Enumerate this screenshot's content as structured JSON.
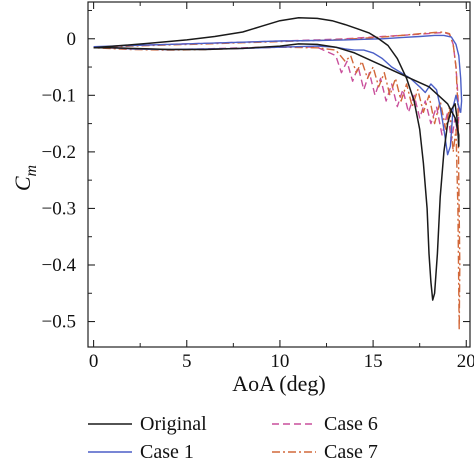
{
  "chart_data": {
    "type": "line",
    "title": "",
    "xlabel": "AoA (deg)",
    "ylabel_main": "C",
    "ylabel_sub": "m",
    "xlim": [
      -0.3,
      20.2
    ],
    "ylim": [
      -0.545,
      0.065
    ],
    "x_ticks": [
      0,
      5,
      10,
      15,
      20
    ],
    "x_tick_labels": [
      "0",
      "5",
      "10",
      "15",
      "20"
    ],
    "x_minor_ticks": [
      2.5,
      7.5,
      12.5,
      17.5
    ],
    "y_ticks": [
      0,
      -0.1,
      -0.2,
      -0.3,
      -0.4,
      -0.5
    ],
    "y_tick_labels": [
      "0",
      "−0.1",
      "−0.2",
      "−0.3",
      "−0.4",
      "−0.5"
    ],
    "y_minor_ticks": [
      0.05,
      -0.05,
      -0.15,
      -0.25,
      -0.35,
      -0.45
    ],
    "grid": false,
    "legend": {
      "placement": "bottom",
      "entries": [
        "Original",
        "Case 1",
        "Case 6",
        "Case 7"
      ]
    },
    "series": [
      {
        "name": "Original",
        "color": "#1a1a1a",
        "dash": "",
        "x": [
          0.0,
          1.5,
          3.0,
          5.0,
          6.5,
          8.0,
          9.0,
          10.0,
          11.0,
          12.0,
          12.8,
          13.5,
          14.2,
          14.8,
          15.3,
          15.8,
          16.3,
          16.8,
          17.2,
          17.5,
          17.7,
          17.9,
          18.0,
          18.1,
          18.2,
          18.3,
          18.45,
          18.6,
          18.8,
          19.0,
          19.2,
          19.4,
          19.5,
          19.6,
          19.6,
          19.4,
          19.0,
          18.5,
          18.0,
          17.0,
          16.0,
          15.0,
          14.0,
          13.0,
          12.0,
          11.0,
          10.0,
          9.0,
          8.0,
          7.0,
          6.0,
          5.0,
          4.0,
          3.0,
          2.0,
          1.0,
          0.0
        ],
        "y": [
          -0.016,
          -0.012,
          -0.008,
          -0.002,
          0.004,
          0.012,
          0.022,
          0.032,
          0.037,
          0.036,
          0.032,
          0.025,
          0.017,
          0.01,
          0.0,
          -0.012,
          -0.035,
          -0.07,
          -0.11,
          -0.16,
          -0.22,
          -0.3,
          -0.38,
          -0.43,
          -0.462,
          -0.45,
          -0.38,
          -0.28,
          -0.2,
          -0.15,
          -0.125,
          -0.115,
          -0.14,
          -0.19,
          -0.17,
          -0.14,
          -0.115,
          -0.1,
          -0.085,
          -0.07,
          -0.055,
          -0.04,
          -0.025,
          -0.015,
          -0.01,
          -0.009,
          -0.013,
          -0.015,
          -0.017,
          -0.018,
          -0.019,
          -0.019,
          -0.019,
          -0.018,
          -0.017,
          -0.016,
          -0.016
        ]
      },
      {
        "name": "Case 1",
        "color": "#4b5fc7",
        "dash": "",
        "x": [
          0.0,
          2.0,
          4.0,
          6.0,
          8.0,
          10.0,
          12.0,
          13.5,
          14.5,
          15.5,
          16.5,
          17.5,
          18.3,
          18.8,
          19.2,
          19.45,
          19.6,
          19.7,
          19.75,
          19.7,
          19.6,
          19.45,
          19.3,
          19.15,
          19.0,
          18.8,
          18.6,
          18.4,
          18.1,
          17.8,
          17.5,
          17.0,
          16.5,
          16.0,
          15.5,
          15.0,
          14.5,
          14.0,
          13.5,
          13.0,
          12.0,
          10.0,
          8.0,
          6.0,
          4.0,
          2.0,
          0.0
        ],
        "y": [
          -0.014,
          -0.012,
          -0.01,
          -0.008,
          -0.006,
          -0.004,
          -0.003,
          -0.002,
          -0.001,
          0.0,
          0.002,
          0.004,
          0.006,
          0.006,
          0.003,
          -0.01,
          -0.03,
          -0.07,
          -0.11,
          -0.13,
          -0.12,
          -0.1,
          -0.12,
          -0.19,
          -0.205,
          -0.16,
          -0.12,
          -0.09,
          -0.08,
          -0.095,
          -0.085,
          -0.07,
          -0.06,
          -0.05,
          -0.035,
          -0.025,
          -0.02,
          -0.02,
          -0.018,
          -0.015,
          -0.013,
          -0.015,
          -0.017,
          -0.018,
          -0.019,
          -0.018,
          -0.014
        ]
      },
      {
        "name": "Case 6",
        "color": "#c94f9b",
        "dash": "7,4",
        "x": [
          0.0,
          2.0,
          4.0,
          6.0,
          8.0,
          10.0,
          12.0,
          13.5,
          14.5,
          15.5,
          16.5,
          17.5,
          18.3,
          18.8,
          19.1,
          19.3,
          19.45,
          19.55,
          19.6,
          19.55,
          19.4,
          19.2,
          19.0,
          18.7,
          18.4,
          18.1,
          17.8,
          17.5,
          17.2,
          16.9,
          16.6,
          16.3,
          16.0,
          15.7,
          15.4,
          15.1,
          14.8,
          14.5,
          14.2,
          13.9,
          13.6,
          13.3,
          13.0,
          12.0,
          10.0,
          8.0,
          6.0,
          4.0,
          2.0,
          0.0
        ],
        "y": [
          -0.015,
          -0.012,
          -0.01,
          -0.008,
          -0.006,
          -0.004,
          -0.002,
          0.0,
          0.002,
          0.004,
          0.006,
          0.008,
          0.01,
          0.011,
          0.008,
          -0.01,
          -0.05,
          -0.1,
          -0.13,
          -0.17,
          -0.14,
          -0.18,
          -0.13,
          -0.17,
          -0.12,
          -0.15,
          -0.11,
          -0.14,
          -0.1,
          -0.13,
          -0.09,
          -0.12,
          -0.08,
          -0.11,
          -0.07,
          -0.1,
          -0.06,
          -0.09,
          -0.05,
          -0.075,
          -0.04,
          -0.06,
          -0.03,
          -0.015,
          -0.014,
          -0.016,
          -0.018,
          -0.019,
          -0.018,
          -0.015
        ]
      },
      {
        "name": "Case 7",
        "color": "#d2683a",
        "dash": "8,3,2,3",
        "x": [
          0.0,
          2.0,
          4.0,
          6.0,
          8.0,
          10.0,
          12.0,
          13.5,
          14.5,
          15.5,
          16.5,
          17.5,
          18.3,
          18.8,
          19.1,
          19.3,
          19.45,
          19.55,
          19.6,
          19.65,
          19.62,
          19.55,
          19.45,
          19.3,
          19.1,
          18.9,
          18.6,
          18.3,
          18.0,
          17.7,
          17.4,
          17.1,
          16.8,
          16.5,
          16.2,
          15.9,
          15.6,
          15.3,
          15.0,
          14.7,
          14.4,
          14.1,
          13.8,
          13.5,
          13.0,
          12.0,
          10.0,
          8.0,
          6.0,
          4.0,
          2.0,
          0.0
        ],
        "y": [
          -0.016,
          -0.013,
          -0.011,
          -0.009,
          -0.007,
          -0.005,
          -0.003,
          -0.001,
          0.001,
          0.003,
          0.006,
          0.009,
          0.011,
          0.012,
          0.009,
          -0.01,
          -0.05,
          -0.12,
          -0.25,
          -0.4,
          -0.515,
          -0.3,
          -0.16,
          -0.2,
          -0.12,
          -0.16,
          -0.11,
          -0.15,
          -0.1,
          -0.13,
          -0.09,
          -0.12,
          -0.08,
          -0.11,
          -0.07,
          -0.1,
          -0.06,
          -0.085,
          -0.05,
          -0.07,
          -0.04,
          -0.06,
          -0.03,
          -0.04,
          -0.02,
          -0.016,
          -0.015,
          -0.017,
          -0.019,
          -0.02,
          -0.019,
          -0.016
        ]
      }
    ]
  }
}
